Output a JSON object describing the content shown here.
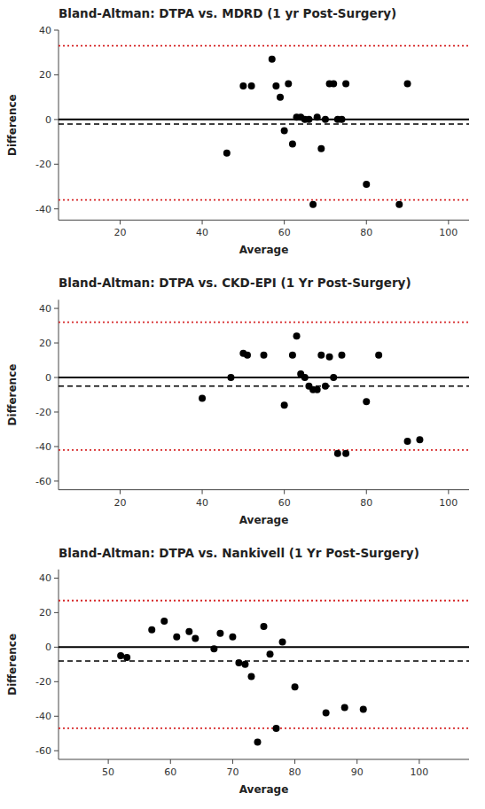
{
  "chart_data": [
    {
      "type": "scatter",
      "title": "Bland-Altman: DTPA vs. MDRD (1 yr Post-Surgery)",
      "x": [
        46,
        50,
        52,
        57,
        58,
        59,
        60,
        61,
        62,
        63,
        64,
        65,
        66,
        67,
        68,
        69,
        70,
        71,
        72,
        73,
        74,
        75,
        80,
        88,
        90
      ],
      "values": [
        -15,
        15,
        15,
        27,
        15,
        10,
        -5,
        16,
        -11,
        1,
        1,
        0,
        0,
        -38,
        1,
        -13,
        0,
        16,
        16,
        0,
        0,
        16,
        -29,
        -38,
        16
      ],
      "color": "#000000",
      "zero_line": 0,
      "bias_line": -2,
      "upper_loa": 33,
      "lower_loa": -36,
      "xlim": [
        5,
        105
      ],
      "ylim": [
        -45,
        40
      ],
      "xticks": [
        20,
        40,
        60,
        80,
        100
      ],
      "yticks": [
        -40,
        -20,
        0,
        20,
        40
      ],
      "xlabel": "Average",
      "ylabel": "Difference",
      "grid": false
    },
    {
      "type": "scatter",
      "title": "Bland-Altman: DTPA vs. CKD-EPI (1 Yr Post-Surgery)",
      "x": [
        40,
        47,
        50,
        51,
        55,
        60,
        62,
        63,
        64,
        65,
        66,
        67,
        68,
        69,
        70,
        71,
        72,
        73,
        74,
        75,
        80,
        83,
        90,
        93
      ],
      "values": [
        -12,
        0,
        14,
        13,
        13,
        -16,
        13,
        24,
        2,
        0,
        -5,
        -7,
        -7,
        13,
        -5,
        12,
        0,
        -44,
        13,
        -44,
        -14,
        13,
        -37,
        -36
      ],
      "color": "#000000",
      "zero_line": 0,
      "bias_line": -5,
      "upper_loa": 32,
      "lower_loa": -42,
      "xlim": [
        5,
        105
      ],
      "ylim": [
        -65,
        45
      ],
      "xticks": [
        20,
        40,
        60,
        80,
        100
      ],
      "yticks": [
        -60,
        -40,
        -20,
        0,
        20,
        40
      ],
      "xlabel": "Average",
      "ylabel": "Difference",
      "grid": false
    },
    {
      "type": "scatter",
      "title": "Bland-Altman: DTPA vs. Nankivell (1 Yr Post-Surgery)",
      "x": [
        52,
        53,
        57,
        59,
        61,
        63,
        64,
        67,
        68,
        70,
        71,
        72,
        73,
        74,
        75,
        76,
        77,
        78,
        80,
        85,
        88,
        91
      ],
      "values": [
        -5,
        -6,
        10,
        15,
        6,
        9,
        5,
        -1,
        8,
        6,
        -9,
        -10,
        -17,
        -55,
        12,
        -4,
        -47,
        3,
        -23,
        -38,
        -35,
        -36
      ],
      "color": "#000000",
      "zero_line": 0,
      "bias_line": -8,
      "upper_loa": 27,
      "lower_loa": -47,
      "xlim": [
        42,
        108
      ],
      "ylim": [
        -65,
        45
      ],
      "xticks": [
        50,
        60,
        70,
        80,
        90,
        100
      ],
      "yticks": [
        -60,
        -40,
        -20,
        0,
        20,
        40
      ],
      "xlabel": "Average",
      "ylabel": "Difference",
      "grid": false
    }
  ]
}
